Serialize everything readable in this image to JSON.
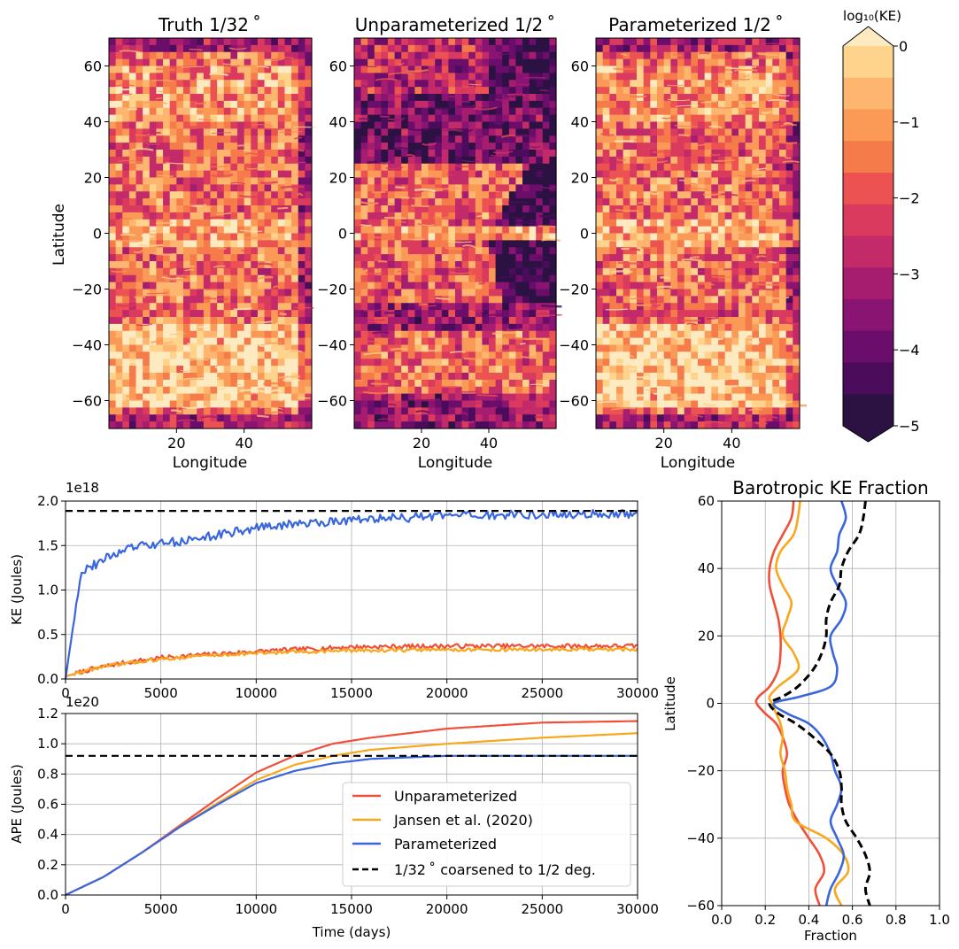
{
  "colormap": [
    "#2c1143",
    "#4b0c5c",
    "#6b0e6b",
    "#8a1471",
    "#a61d70",
    "#c22a69",
    "#d93a5e",
    "#ec5251",
    "#f67b4a",
    "#fa9a56",
    "#fdb56f",
    "#fed48c",
    "#fdeac0"
  ],
  "colorbar": {
    "label": "log₁₀(KE)",
    "ticks": [
      "0",
      "−1",
      "−2",
      "−3",
      "−4",
      "−5"
    ],
    "tick_values": [
      0,
      -1,
      -2,
      -3,
      -4,
      -5
    ]
  },
  "maps": [
    {
      "title": "Truth 1/32 ˚",
      "xlabel": "Longitude",
      "ylabel": "Latitude",
      "xticks": [
        "20",
        "40"
      ],
      "yticks": [
        "60",
        "40",
        "20",
        "0",
        "−20",
        "−40",
        "−60"
      ],
      "variant": "truth"
    },
    {
      "title": "Unparameterized 1/2 ˚",
      "xlabel": "Longitude",
      "xticks": [
        "20",
        "40"
      ],
      "yticks": [
        "60",
        "40",
        "20",
        "0",
        "−20",
        "−40",
        "−60"
      ],
      "variant": "unparam"
    },
    {
      "title": "Parameterized 1/2 ˚",
      "xlabel": "Longitude",
      "xticks": [
        "20",
        "40"
      ],
      "yticks": [
        "60",
        "40",
        "20",
        "0",
        "−20",
        "−40",
        "−60"
      ],
      "variant": "param"
    }
  ],
  "chart_data": [
    {
      "type": "heatmap",
      "title": "Truth 1/32 ˚",
      "xlabel": "Longitude",
      "ylabel": "Latitude",
      "xlim": [
        0,
        60
      ],
      "ylim": [
        -70,
        70
      ],
      "color_scale": "log10(KE)",
      "clim": [
        -5,
        0
      ]
    },
    {
      "type": "heatmap",
      "title": "Unparameterized 1/2 ˚",
      "xlabel": "Longitude",
      "xlim": [
        0,
        60
      ],
      "ylim": [
        -70,
        70
      ],
      "clim": [
        -5,
        0
      ]
    },
    {
      "type": "heatmap",
      "title": "Parameterized 1/2 ˚",
      "xlabel": "Longitude",
      "xlim": [
        0,
        60
      ],
      "ylim": [
        -70,
        70
      ],
      "clim": [
        -5,
        0
      ]
    },
    {
      "type": "line",
      "ylabel": "KE (Joules)",
      "y_multiplier": "1e18",
      "xlim": [
        0,
        30000
      ],
      "ylim": [
        0,
        2.0
      ],
      "yticks": [
        "0.0",
        "0.5",
        "1.0",
        "1.5",
        "2.0"
      ],
      "xticks": [
        "0",
        "5000",
        "10000",
        "15000",
        "20000",
        "25000",
        "30000"
      ],
      "grid": true,
      "series": [
        {
          "name": "Unparameterized",
          "color": "#f05039",
          "x": [
            0,
            1000,
            2000,
            3000,
            4000,
            5000,
            7000,
            10000,
            13000,
            15000,
            20000,
            25000,
            30000
          ],
          "y": [
            0.03,
            0.09,
            0.14,
            0.18,
            0.21,
            0.24,
            0.27,
            0.31,
            0.34,
            0.36,
            0.37,
            0.37,
            0.37
          ],
          "noise": 0.025
        },
        {
          "name": "Jansen et al. (2020)",
          "color": "#f9a71d",
          "x": [
            0,
            1000,
            2000,
            3000,
            4000,
            5000,
            7000,
            10000,
            13000,
            15000,
            20000,
            25000,
            30000
          ],
          "y": [
            0.03,
            0.09,
            0.14,
            0.17,
            0.2,
            0.22,
            0.26,
            0.29,
            0.31,
            0.32,
            0.33,
            0.33,
            0.33
          ],
          "noise": 0.02
        },
        {
          "name": "Parameterized",
          "color": "#3a66dd",
          "x": [
            0,
            800,
            1000,
            1500,
            2500,
            3500,
            5000,
            7000,
            10000,
            12000,
            15000,
            20000,
            25000,
            30000
          ],
          "y": [
            0.0,
            1.2,
            1.23,
            1.28,
            1.4,
            1.48,
            1.52,
            1.58,
            1.7,
            1.74,
            1.79,
            1.83,
            1.85,
            1.85
          ],
          "noise": 0.05
        },
        {
          "name": "1/32 ˚  coarsened to 1/2 deg.",
          "color": "#000000",
          "dashed": true,
          "x": [
            0,
            30000
          ],
          "y": [
            1.89,
            1.89
          ]
        }
      ]
    },
    {
      "type": "line",
      "ylabel": "APE (Joules)",
      "xlabel": "Time (days)",
      "y_multiplier": "1e20",
      "xlim": [
        0,
        30000
      ],
      "ylim": [
        0,
        1.2
      ],
      "yticks": [
        "0.0",
        "0.2",
        "0.4",
        "0.6",
        "0.8",
        "1.0",
        "1.2"
      ],
      "xticks": [
        "0",
        "5000",
        "10000",
        "15000",
        "20000",
        "25000",
        "30000"
      ],
      "grid": true,
      "legend": "center-right",
      "series": [
        {
          "name": "Unparameterized",
          "color": "#f05039",
          "x": [
            0,
            2000,
            4000,
            6000,
            8000,
            10000,
            12000,
            14000,
            16000,
            20000,
            25000,
            30000
          ],
          "y": [
            0.0,
            0.12,
            0.28,
            0.46,
            0.64,
            0.81,
            0.92,
            1.0,
            1.04,
            1.1,
            1.14,
            1.15
          ]
        },
        {
          "name": "Jansen et al. (2020)",
          "color": "#f9a71d",
          "x": [
            0,
            2000,
            4000,
            6000,
            8000,
            10000,
            12000,
            14000,
            16000,
            20000,
            25000,
            30000
          ],
          "y": [
            0.0,
            0.12,
            0.28,
            0.45,
            0.61,
            0.76,
            0.86,
            0.92,
            0.96,
            1.0,
            1.04,
            1.07
          ]
        },
        {
          "name": "Parameterized",
          "color": "#3a66dd",
          "x": [
            0,
            2000,
            4000,
            6000,
            8000,
            10000,
            12000,
            14000,
            16000,
            20000,
            25000,
            30000
          ],
          "y": [
            0.0,
            0.12,
            0.28,
            0.45,
            0.6,
            0.74,
            0.82,
            0.87,
            0.9,
            0.92,
            0.92,
            0.92
          ]
        },
        {
          "name": "1/32 ˚  coarsened to 1/2 deg.",
          "color": "#000000",
          "dashed": true,
          "x": [
            0,
            30000
          ],
          "y": [
            0.92,
            0.92
          ]
        }
      ]
    },
    {
      "type": "line",
      "title": "Barotropic KE Fraction",
      "xlabel": "Fraction",
      "ylabel": "Latitude",
      "xlim": [
        0.0,
        1.0
      ],
      "ylim": [
        -60,
        60
      ],
      "xticks": [
        "0.0",
        "0.2",
        "0.4",
        "0.6",
        "0.8",
        "1.0"
      ],
      "yticks": [
        "60",
        "40",
        "20",
        "0",
        "−20",
        "−40",
        "−60"
      ],
      "grid": true,
      "series": [
        {
          "name": "Unparameterized",
          "color": "#f05039",
          "lat": [
            60,
            55,
            50,
            45,
            40,
            35,
            30,
            25,
            20,
            15,
            10,
            5,
            2,
            0,
            -3,
            -6,
            -10,
            -15,
            -20,
            -25,
            -30,
            -35,
            -40,
            -45,
            -50,
            -55,
            -60
          ],
          "frac": [
            0.33,
            0.32,
            0.28,
            0.24,
            0.22,
            0.22,
            0.24,
            0.26,
            0.27,
            0.27,
            0.26,
            0.22,
            0.17,
            0.16,
            0.2,
            0.25,
            0.28,
            0.3,
            0.28,
            0.29,
            0.31,
            0.35,
            0.4,
            0.45,
            0.47,
            0.43,
            0.45
          ]
        },
        {
          "name": "Jansen et al. (2020)",
          "color": "#f9a71d",
          "lat": [
            60,
            55,
            50,
            45,
            40,
            35,
            30,
            25,
            20,
            15,
            10,
            5,
            2,
            0,
            -3,
            -6,
            -10,
            -15,
            -20,
            -25,
            -30,
            -35,
            -40,
            -45,
            -50,
            -55,
            -60
          ],
          "frac": [
            0.36,
            0.35,
            0.33,
            0.27,
            0.25,
            0.28,
            0.32,
            0.3,
            0.28,
            0.33,
            0.35,
            0.26,
            0.22,
            0.23,
            0.25,
            0.27,
            0.28,
            0.27,
            0.29,
            0.3,
            0.32,
            0.34,
            0.48,
            0.56,
            0.58,
            0.52,
            0.55
          ]
        },
        {
          "name": "Parameterized",
          "color": "#3a66dd",
          "lat": [
            60,
            55,
            50,
            45,
            40,
            35,
            30,
            25,
            20,
            15,
            10,
            5,
            2,
            0,
            -3,
            -6,
            -10,
            -15,
            -20,
            -25,
            -30,
            -35,
            -40,
            -45,
            -50,
            -55,
            -60
          ],
          "frac": [
            0.55,
            0.57,
            0.54,
            0.53,
            0.5,
            0.53,
            0.57,
            0.55,
            0.5,
            0.51,
            0.53,
            0.5,
            0.36,
            0.24,
            0.3,
            0.4,
            0.46,
            0.5,
            0.52,
            0.55,
            0.53,
            0.5,
            0.53,
            0.56,
            0.54,
            0.5,
            0.48
          ]
        },
        {
          "name": "1/32 ˚  coarsened to 1/2 deg.",
          "color": "#000000",
          "dashed": true,
          "lat": [
            60,
            55,
            50,
            45,
            40,
            35,
            30,
            25,
            20,
            15,
            10,
            5,
            2,
            0,
            -3,
            -6,
            -10,
            -15,
            -20,
            -25,
            -30,
            -35,
            -40,
            -45,
            -50,
            -55,
            -60
          ],
          "frac": [
            0.66,
            0.65,
            0.63,
            0.58,
            0.55,
            0.54,
            0.5,
            0.48,
            0.48,
            0.46,
            0.42,
            0.35,
            0.28,
            0.22,
            0.26,
            0.34,
            0.42,
            0.5,
            0.54,
            0.55,
            0.55,
            0.57,
            0.62,
            0.66,
            0.68,
            0.66,
            0.68
          ]
        }
      ]
    }
  ]
}
